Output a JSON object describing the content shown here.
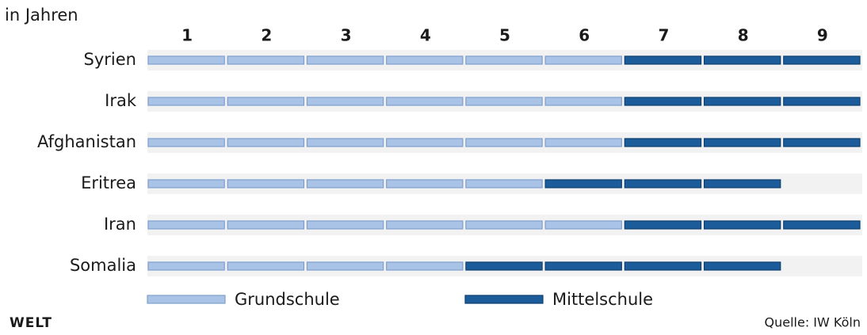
{
  "chart_data": {
    "type": "segmented-bar",
    "x_label": "in Jahren",
    "categories": [
      "Syrien",
      "Irak",
      "Afghanistan",
      "Eritrea",
      "Iran",
      "Somalia"
    ],
    "series": [
      {
        "name": "Grundschule",
        "color": "#a9c3e6",
        "values": [
          6,
          6,
          6,
          5,
          6,
          4
        ]
      },
      {
        "name": "Mittelschule",
        "color": "#1c5c9a",
        "values": [
          3,
          3,
          3,
          3,
          3,
          4
        ]
      }
    ],
    "xlim": [
      0,
      9
    ],
    "xticks": [
      1,
      2,
      3,
      4,
      5,
      6,
      7,
      8,
      9
    ],
    "logo": "WELT",
    "source": "Quelle: IW Köln"
  }
}
